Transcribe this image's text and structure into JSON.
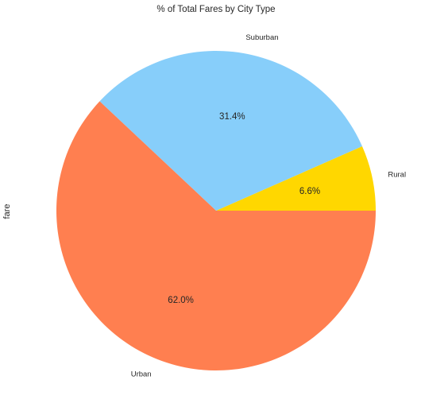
{
  "chart_data": {
    "type": "pie",
    "title": "% of Total Fares by City Type",
    "ylabel": "fare",
    "xlabel": "",
    "start_angle_deg": 0,
    "direction": "counterclockwise",
    "slices": [
      {
        "label": "Rural",
        "value": 6.6,
        "pct_label": "6.6%",
        "color": "#FFD700"
      },
      {
        "label": "Suburban",
        "value": 31.4,
        "pct_label": "31.4%",
        "color": "#87CEFA"
      },
      {
        "label": "Urban",
        "value": 62.0,
        "pct_label": "62.0%",
        "color": "#FF7F50"
      }
    ],
    "legend": "none",
    "grid": false
  }
}
